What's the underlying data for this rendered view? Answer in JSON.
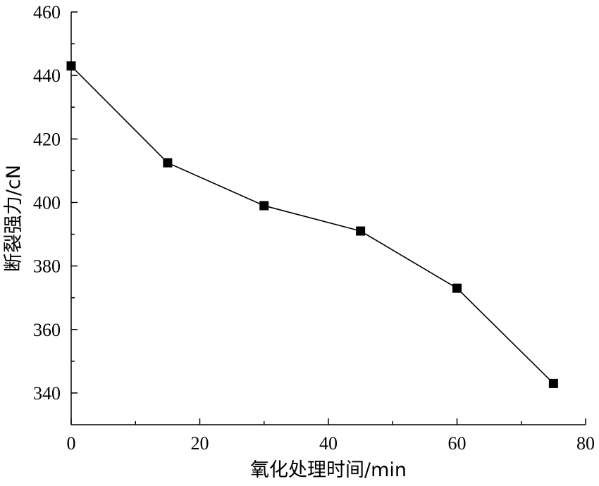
{
  "chart_data": {
    "type": "line",
    "title": "",
    "xlabel": "氧化处理时间/min",
    "ylabel": "断裂强力/cN",
    "xlim": [
      0,
      80
    ],
    "ylim": [
      330,
      460
    ],
    "x_ticks": [
      0,
      20,
      40,
      60,
      80
    ],
    "x_ticks_minor": [
      10,
      30,
      50,
      70
    ],
    "y_ticks": [
      340,
      360,
      380,
      400,
      420,
      440,
      460
    ],
    "y_ticks_minor": [
      350,
      370,
      390,
      410,
      430,
      450
    ],
    "grid": false,
    "series": [
      {
        "marker": "square",
        "color": "#000000",
        "x": [
          0,
          15,
          30,
          45,
          60,
          75
        ],
        "y": [
          443,
          412.5,
          399,
          391,
          373,
          343
        ]
      }
    ]
  }
}
